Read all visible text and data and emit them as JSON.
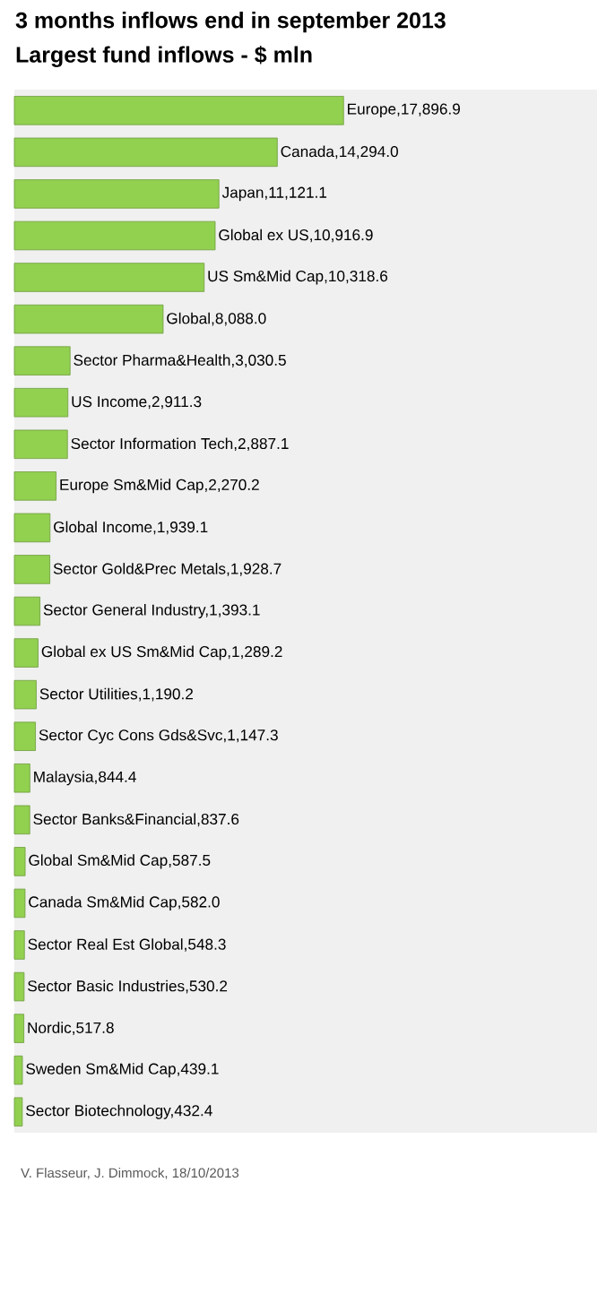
{
  "chart_data": {
    "type": "bar",
    "orientation": "horizontal",
    "title": "3 months inflows end in september 2013",
    "subtitle": "Largest fund inflows - $ mln",
    "categories": [
      null,
      null,
      null,
      null,
      null,
      null,
      null,
      null,
      null,
      null,
      null,
      null,
      null,
      null,
      null,
      null,
      null,
      null,
      null,
      null,
      null,
      null,
      null,
      null,
      null
    ],
    "values": [
      17896.9,
      14294.0,
      11121.1,
      10916.9,
      10318.6,
      8088.0,
      3030.5,
      2911.3,
      2887.1,
      2270.2,
      1939.1,
      1928.7,
      1393.1,
      1289.2,
      1190.2,
      1147.3,
      844.4,
      837.6,
      587.5,
      582.0,
      548.3,
      530.2,
      517.8,
      439.1,
      432.4
    ],
    "value_labels": [
      "Europe,17,896.9",
      "Canada,14,294.0",
      "Japan,11,121.1",
      "Global ex US,10,916.9",
      "US Sm&Mid Cap,10,318.6",
      "Global,8,088.0",
      "Sector Pharma&Health,3,030.5",
      "US Income,2,911.3",
      "Sector Information Tech,2,887.1",
      "Europe Sm&Mid Cap,2,270.2",
      "Global Income,1,939.1",
      "Sector Gold&Prec Metals,1,928.7",
      "Sector General Industry,1,393.1",
      "Global ex US Sm&Mid Cap,1,289.2",
      "Sector Utilities,1,190.2",
      "Sector Cyc Cons Gds&Svc,1,147.3",
      "Malaysia,844.4",
      "Sector Banks&Financial,837.6",
      "Global Sm&Mid Cap,587.5",
      "Canada Sm&Mid Cap,582.0",
      "Sector Real Est Global,548.3",
      "Sector Basic Industries,530.2",
      "Nordic,517.8",
      "Sweden Sm&Mid Cap,439.1",
      "Sector Biotechnology,432.4"
    ],
    "color": "#92d050",
    "annotations": [
      "V. Flasseur, J. Dimmock, 18/10/2013"
    ]
  }
}
